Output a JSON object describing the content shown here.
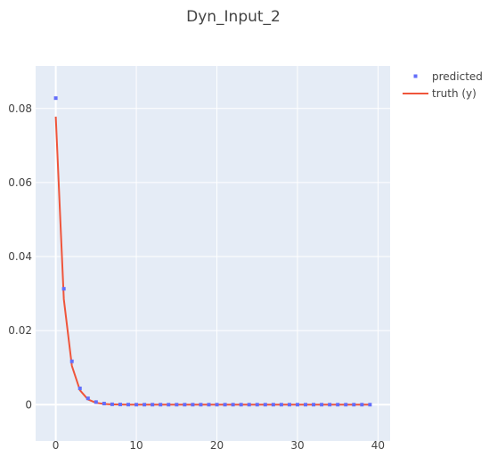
{
  "chart_data": {
    "type": "line",
    "title": "Dyn_Input_2",
    "xlabel": "",
    "ylabel": "",
    "xlim": [
      -2.5,
      41.5
    ],
    "ylim": [
      -0.0098,
      0.0915
    ],
    "x_ticks": [
      0,
      10,
      20,
      30,
      40
    ],
    "y_ticks": [
      0,
      0.02,
      0.04,
      0.06,
      0.08
    ],
    "x_tick_labels": [
      "0",
      "10",
      "20",
      "30",
      "40"
    ],
    "y_tick_labels": [
      "0",
      "0.02",
      "0.04",
      "0.06",
      "0.08"
    ],
    "grid": true,
    "legend_position": "top-right",
    "plot_background": "#e5ecf6",
    "series": [
      {
        "name": "predicted",
        "mode": "markers",
        "color": "#636efa",
        "x": [
          0,
          1,
          2,
          3,
          4,
          5,
          6,
          7,
          8,
          9,
          10,
          11,
          12,
          13,
          14,
          15,
          16,
          17,
          18,
          19,
          20,
          21,
          22,
          23,
          24,
          25,
          26,
          27,
          28,
          29,
          30,
          31,
          32,
          33,
          34,
          35,
          36,
          37,
          38,
          39
        ],
        "y": [
          0.0828,
          0.0313,
          0.0117,
          0.0044,
          0.0017,
          0.0007,
          0.0003,
          0.0001,
          5e-05,
          2e-05,
          0,
          0,
          0,
          0,
          0,
          0,
          0,
          0,
          0,
          0,
          0,
          0,
          0,
          0,
          0,
          0,
          0,
          0,
          0,
          0,
          0,
          0,
          0,
          0,
          0,
          0,
          0,
          0,
          0,
          0
        ]
      },
      {
        "name": "truth (y)",
        "mode": "lines",
        "color": "#ef553b",
        "x": [
          0,
          1,
          2,
          3,
          4,
          5,
          6,
          7,
          8,
          9,
          10,
          11,
          12,
          13,
          14,
          15,
          16,
          17,
          18,
          19,
          20,
          21,
          22,
          23,
          24,
          25,
          26,
          27,
          28,
          29,
          30,
          31,
          32,
          33,
          34,
          35,
          36,
          37,
          38,
          39
        ],
        "y": [
          0.0778,
          0.0285,
          0.0105,
          0.0039,
          0.0014,
          0.0005,
          0.0002,
          7e-05,
          3e-05,
          1e-05,
          0,
          0,
          0,
          0,
          0,
          0,
          0,
          0,
          0,
          0,
          0,
          0,
          0,
          0,
          0,
          0,
          0,
          0,
          0,
          0,
          0,
          0,
          0,
          0,
          0,
          0,
          0,
          0,
          0,
          0
        ]
      }
    ]
  }
}
